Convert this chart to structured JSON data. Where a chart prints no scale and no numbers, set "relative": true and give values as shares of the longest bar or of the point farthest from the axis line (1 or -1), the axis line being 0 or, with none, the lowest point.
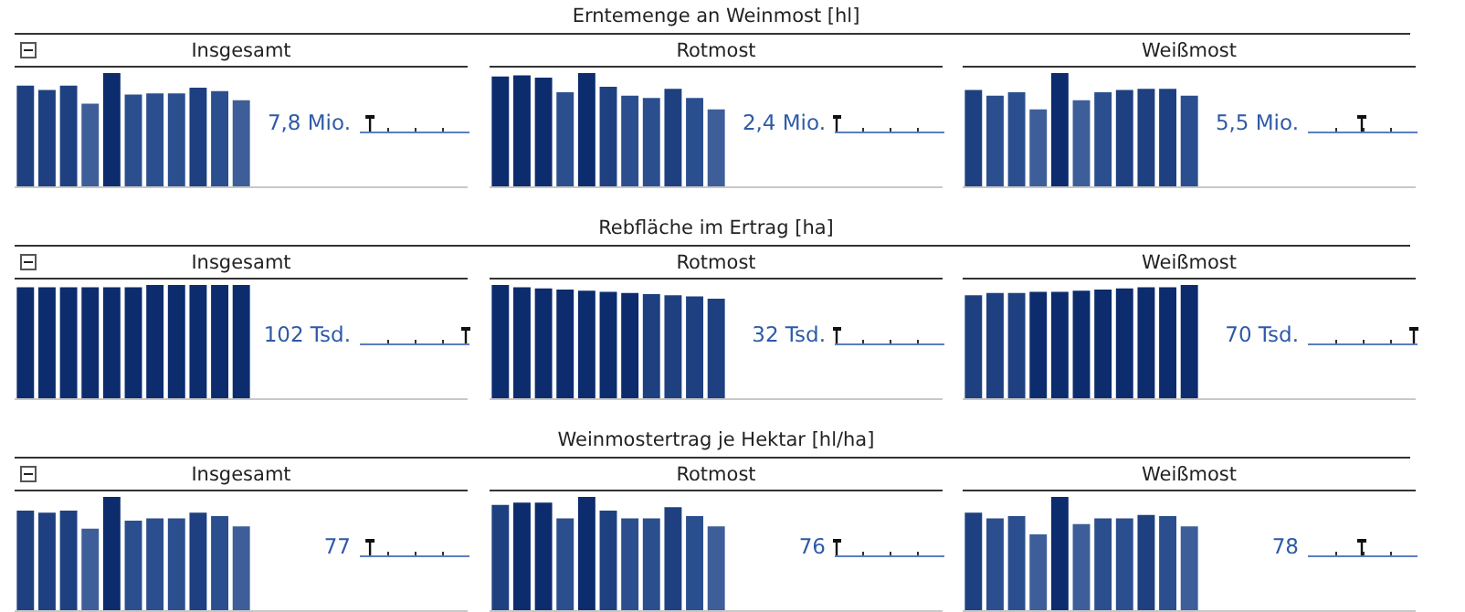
{
  "chart_data": [
    {
      "type": "bar",
      "title": "Insgesamt",
      "relative": true,
      "categories": [
        null,
        null,
        null,
        null,
        null,
        null,
        null,
        null,
        null,
        null,
        null
      ],
      "values": [
        0.89,
        0.85,
        0.89,
        0.73,
        1,
        0.81,
        0.82,
        0.82,
        0.87,
        0.84,
        0.76
      ],
      "colors": [
        "#1e4080",
        "#1e4080",
        "#1e4080",
        "#3d5e98",
        "#0c2c6e",
        "#2b4f8e",
        "#2b4f8e",
        "#2b4f8e",
        "#1e4080",
        "#2b4f8e",
        "#3d5e98"
      ],
      "annotations": [
        "7,8 Mio."
      ]
    },
    {
      "type": "bar",
      "subtitle": "Erntemenge an Weinmost [hl]",
      "title": "Rotmost",
      "relative": true,
      "categories": [
        null,
        null,
        null,
        null,
        null,
        null,
        null,
        null,
        null,
        null,
        null
      ],
      "values": [
        0.97,
        0.98,
        0.96,
        0.83,
        1,
        0.88,
        0.8,
        0.78,
        0.86,
        0.78,
        0.68
      ],
      "colors": [
        "#0c2c6e",
        "#0c2c6e",
        "#0c2c6e",
        "#2b4f8e",
        "#0c2c6e",
        "#1e4080",
        "#2b4f8e",
        "#2b4f8e",
        "#1e4080",
        "#2b4f8e",
        "#3d5e98"
      ],
      "annotations": [
        "2,4 Mio."
      ]
    },
    {
      "type": "bar",
      "title": "Weißmost",
      "relative": true,
      "categories": [
        null,
        null,
        null,
        null,
        null,
        null,
        null,
        null,
        null,
        null,
        null
      ],
      "values": [
        0.85,
        0.8,
        0.83,
        0.68,
        1,
        0.76,
        0.83,
        0.85,
        0.86,
        0.86,
        0.8
      ],
      "colors": [
        "#1e4080",
        "#2b4f8e",
        "#2b4f8e",
        "#3d5e98",
        "#0c2c6e",
        "#3d5e98",
        "#2b4f8e",
        "#1e4080",
        "#1e4080",
        "#1e4080",
        "#2b4f8e"
      ],
      "annotations": [
        "5,5 Mio."
      ]
    },
    {
      "type": "bar",
      "title": "Insgesamt",
      "relative": true,
      "categories": [
        null,
        null,
        null,
        null,
        null,
        null,
        null,
        null,
        null,
        null,
        null
      ],
      "values": [
        0.98,
        0.98,
        0.98,
        0.98,
        0.98,
        0.98,
        1,
        1,
        1,
        1,
        1
      ],
      "colors": [
        "#0c2c6e",
        "#0c2c6e",
        "#0c2c6e",
        "#0c2c6e",
        "#0c2c6e",
        "#0c2c6e",
        "#0c2c6e",
        "#0c2c6e",
        "#0c2c6e",
        "#0c2c6e",
        "#0c2c6e"
      ],
      "annotations": [
        "102 Tsd."
      ]
    },
    {
      "type": "bar",
      "subtitle": "Rebfläche im Ertrag [ha]",
      "title": "Rotmost",
      "relative": true,
      "categories": [
        null,
        null,
        null,
        null,
        null,
        null,
        null,
        null,
        null,
        null,
        null
      ],
      "values": [
        1,
        0.98,
        0.97,
        0.96,
        0.95,
        0.94,
        0.93,
        0.92,
        0.91,
        0.9,
        0.88
      ],
      "colors": [
        "#0c2c6e",
        "#0c2c6e",
        "#0c2c6e",
        "#0c2c6e",
        "#0c2c6e",
        "#0c2c6e",
        "#0c2c6e",
        "#1e4080",
        "#1e4080",
        "#1e4080",
        "#1e4080"
      ],
      "annotations": [
        "32 Tsd."
      ]
    },
    {
      "type": "bar",
      "title": "Weißmost",
      "relative": true,
      "categories": [
        null,
        null,
        null,
        null,
        null,
        null,
        null,
        null,
        null,
        null,
        null
      ],
      "values": [
        0.91,
        0.93,
        0.93,
        0.94,
        0.94,
        0.95,
        0.96,
        0.97,
        0.98,
        0.98,
        1
      ],
      "colors": [
        "#1e4080",
        "#1e4080",
        "#1e4080",
        "#0c2c6e",
        "#0c2c6e",
        "#0c2c6e",
        "#0c2c6e",
        "#0c2c6e",
        "#0c2c6e",
        "#0c2c6e",
        "#0c2c6e"
      ],
      "annotations": [
        "70 Tsd."
      ]
    },
    {
      "type": "bar",
      "title": "Insgesamt",
      "relative": true,
      "categories": [
        null,
        null,
        null,
        null,
        null,
        null,
        null,
        null,
        null,
        null,
        null
      ],
      "values": [
        0.88,
        0.86,
        0.88,
        0.72,
        1,
        0.79,
        0.81,
        0.81,
        0.86,
        0.83,
        0.74
      ],
      "colors": [
        "#1e4080",
        "#1e4080",
        "#1e4080",
        "#3d5e98",
        "#0c2c6e",
        "#2b4f8e",
        "#2b4f8e",
        "#2b4f8e",
        "#1e4080",
        "#2b4f8e",
        "#3d5e98"
      ],
      "annotations": [
        "77"
      ]
    },
    {
      "type": "bar",
      "subtitle": "Weinmostertrag je Hektar [hl/ha]",
      "title": "Rotmost",
      "relative": true,
      "categories": [
        null,
        null,
        null,
        null,
        null,
        null,
        null,
        null,
        null,
        null,
        null
      ],
      "values": [
        0.93,
        0.95,
        0.95,
        0.81,
        1,
        0.88,
        0.81,
        0.81,
        0.91,
        0.83,
        0.74
      ],
      "colors": [
        "#1e4080",
        "#0c2c6e",
        "#0c2c6e",
        "#2b4f8e",
        "#0c2c6e",
        "#1e4080",
        "#2b4f8e",
        "#2b4f8e",
        "#1e4080",
        "#2b4f8e",
        "#3d5e98"
      ],
      "annotations": [
        "76"
      ]
    },
    {
      "type": "bar",
      "title": "Weißmost",
      "relative": true,
      "categories": [
        null,
        null,
        null,
        null,
        null,
        null,
        null,
        null,
        null,
        null,
        null
      ],
      "values": [
        0.86,
        0.81,
        0.83,
        0.67,
        1,
        0.76,
        0.81,
        0.81,
        0.84,
        0.83,
        0.74
      ],
      "colors": [
        "#1e4080",
        "#2b4f8e",
        "#2b4f8e",
        "#3d5e98",
        "#0c2c6e",
        "#3d5e98",
        "#2b4f8e",
        "#2b4f8e",
        "#1e4080",
        "#2b4f8e",
        "#3d5e98"
      ],
      "annotations": [
        "78"
      ]
    }
  ]
}
